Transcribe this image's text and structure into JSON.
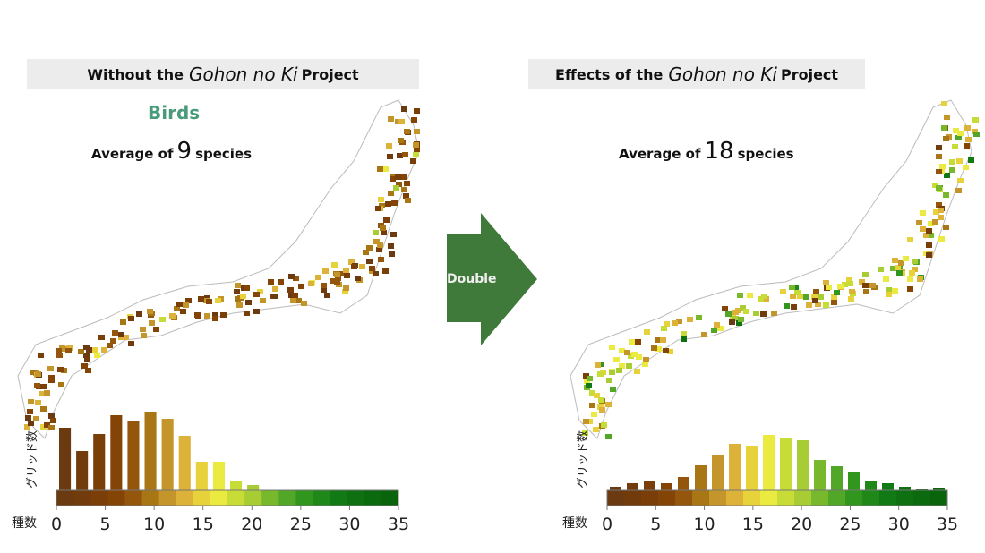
{
  "panels": [
    {
      "title_pre": "Without the",
      "title_em": "Gohon no Ki",
      "title_post": "Project",
      "taxon": "Birds",
      "avg_pre": "Average of",
      "avg_value": "9",
      "avg_post": "species"
    },
    {
      "title_pre": "Effects of the",
      "title_em": "Gohon no Ki",
      "title_post": "Project",
      "avg_pre": "Average of",
      "avg_value": "18",
      "avg_post": "species"
    }
  ],
  "arrow": {
    "label": "Double",
    "color": "#3f7a3a"
  },
  "chart_data": [
    {
      "type": "bar",
      "title": "Without the Gohon no Ki Project",
      "xlabel": "種数",
      "ylabel": "グリッド数",
      "xlim": [
        0,
        35
      ],
      "xticks": [
        0,
        5,
        10,
        15,
        20,
        25,
        30,
        35
      ],
      "bin_width": 1.75,
      "values": [
        70,
        44,
        63,
        84,
        78,
        88,
        80,
        61,
        32,
        32,
        10,
        6,
        0,
        0,
        0,
        0,
        0,
        0,
        0,
        0
      ]
    },
    {
      "type": "bar",
      "title": "Effects of the Gohon no Ki Project",
      "xlabel": "種数",
      "ylabel": "グリッド数",
      "xlim": [
        0,
        35
      ],
      "xticks": [
        0,
        5,
        10,
        15,
        20,
        25,
        30,
        35
      ],
      "bin_width": 1.75,
      "values": [
        4,
        8,
        10,
        8,
        15,
        28,
        40,
        52,
        50,
        62,
        58,
        56,
        34,
        27,
        20,
        10,
        8,
        4,
        1,
        3
      ]
    }
  ],
  "colors": [
    "#6b3a10",
    "#713b0c",
    "#7a3e08",
    "#844405",
    "#94560d",
    "#a87615",
    "#c4952a",
    "#dcb238",
    "#e8d23c",
    "#eaea40",
    "#c8dc38",
    "#a8cc34",
    "#78b82c",
    "#52a628",
    "#30961e",
    "#1f8818",
    "#127a14",
    "#0e7010",
    "#0c6a0e",
    "#0a640c"
  ]
}
